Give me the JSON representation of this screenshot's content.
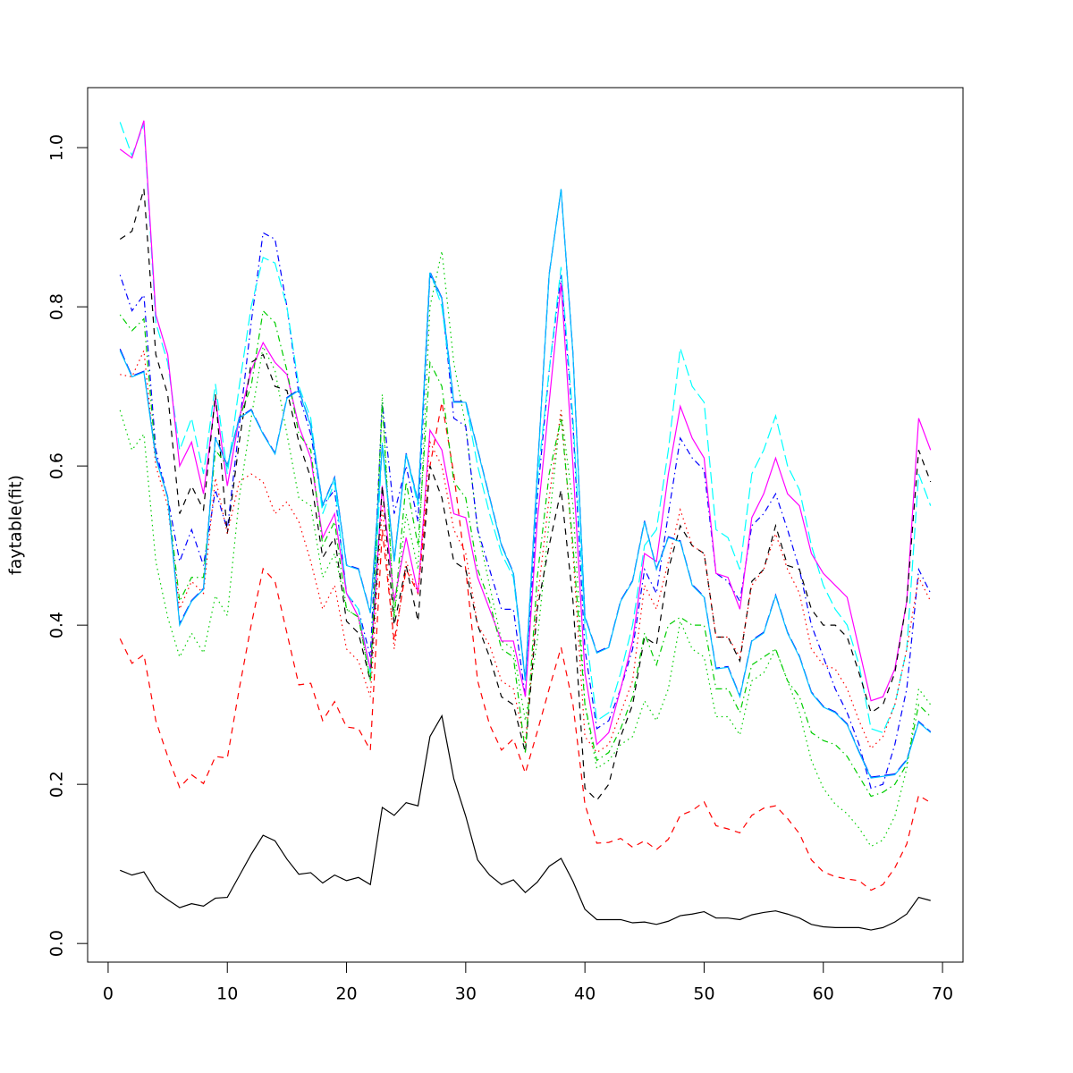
{
  "chart_data": {
    "type": "line",
    "ylabel": "faytable(fit)",
    "xlim": [
      -1.72,
      71.72
    ],
    "ylim": [
      -0.0234,
      1.0754
    ],
    "xticks": [
      0,
      10,
      20,
      30,
      40,
      50,
      60,
      70
    ],
    "yticks": [
      {
        "value": 0,
        "label": "0.0"
      },
      0.2,
      0.4,
      0.6,
      0.8,
      {
        "value": 1,
        "label": "1.0"
      }
    ],
    "x": [
      1,
      2,
      3,
      4,
      5,
      6,
      7,
      8,
      9,
      10,
      11,
      12,
      13,
      14,
      15,
      16,
      17,
      18,
      19,
      20,
      21,
      22,
      23,
      24,
      25,
      26,
      27,
      28,
      29,
      30,
      31,
      32,
      33,
      34,
      35,
      36,
      37,
      38,
      39,
      40,
      41,
      42,
      43,
      44,
      45,
      46,
      47,
      48,
      49,
      50,
      51,
      52,
      53,
      54,
      55,
      56,
      57,
      58,
      59,
      60,
      61,
      62,
      63,
      64,
      65,
      66,
      67,
      68,
      69
    ],
    "series": [
      {
        "color": "#000000",
        "dash": "solid",
        "values": [
          0.092,
          0.086,
          0.09,
          0.066,
          0.055,
          0.045,
          0.05,
          0.047,
          0.057,
          0.058,
          0.085,
          0.112,
          0.136,
          0.129,
          0.106,
          0.087,
          0.089,
          0.076,
          0.086,
          0.079,
          0.083,
          0.074,
          0.171,
          0.161,
          0.177,
          0.173,
          0.26,
          0.286,
          0.207,
          0.16,
          0.105,
          0.086,
          0.074,
          0.08,
          0.064,
          0.077,
          0.097,
          0.107,
          0.078,
          0.043,
          0.03,
          0.03,
          0.03,
          0.026,
          0.027,
          0.024,
          0.028,
          0.035,
          0.037,
          0.04,
          0.032,
          0.032,
          0.03,
          0.036,
          0.039,
          0.041,
          0.037,
          0.032,
          0.024,
          0.021,
          0.02,
          0.02,
          0.02,
          0.017,
          0.02,
          0.027,
          0.037,
          0.058,
          0.054
        ]
      },
      {
        "color": "#ff0000",
        "dash": "dashed",
        "values": [
          0.383,
          0.352,
          0.363,
          0.28,
          0.235,
          0.196,
          0.212,
          0.201,
          0.235,
          0.233,
          0.32,
          0.4,
          0.471,
          0.455,
          0.39,
          0.325,
          0.327,
          0.28,
          0.304,
          0.272,
          0.27,
          0.243,
          0.52,
          0.38,
          0.47,
          0.44,
          0.6,
          0.68,
          0.59,
          0.47,
          0.33,
          0.275,
          0.243,
          0.257,
          0.214,
          0.266,
          0.32,
          0.372,
          0.3,
          0.175,
          0.126,
          0.127,
          0.132,
          0.121,
          0.129,
          0.118,
          0.131,
          0.161,
          0.167,
          0.178,
          0.148,
          0.144,
          0.139,
          0.161,
          0.17,
          0.173,
          0.157,
          0.138,
          0.105,
          0.09,
          0.084,
          0.081,
          0.079,
          0.067,
          0.074,
          0.095,
          0.125,
          0.186,
          0.177
        ]
      },
      {
        "color": "#00cd00",
        "dash": "dotted",
        "values": [
          0.67,
          0.62,
          0.64,
          0.48,
          0.41,
          0.36,
          0.39,
          0.365,
          0.437,
          0.412,
          0.56,
          0.66,
          0.75,
          0.72,
          0.64,
          0.56,
          0.55,
          0.46,
          0.49,
          0.42,
          0.41,
          0.33,
          0.69,
          0.41,
          0.54,
          0.47,
          0.8,
          0.87,
          0.73,
          0.65,
          0.52,
          0.45,
          0.38,
          0.37,
          0.28,
          0.38,
          0.53,
          0.67,
          0.55,
          0.3,
          0.22,
          0.23,
          0.25,
          0.26,
          0.305,
          0.28,
          0.32,
          0.405,
          0.37,
          0.36,
          0.285,
          0.285,
          0.262,
          0.33,
          0.34,
          0.37,
          0.33,
          0.29,
          0.23,
          0.195,
          0.175,
          0.163,
          0.145,
          0.122,
          0.13,
          0.16,
          0.22,
          0.32,
          0.3
        ]
      },
      {
        "color": "#0000ff",
        "dash": "dotdash",
        "values": [
          0.84,
          0.795,
          0.815,
          0.62,
          0.56,
          0.48,
          0.52,
          0.475,
          0.57,
          0.52,
          0.65,
          0.78,
          0.893,
          0.885,
          0.8,
          0.69,
          0.64,
          0.55,
          0.57,
          0.44,
          0.42,
          0.36,
          0.68,
          0.54,
          0.6,
          0.53,
          0.84,
          0.81,
          0.66,
          0.65,
          0.52,
          0.47,
          0.42,
          0.42,
          0.31,
          0.56,
          0.72,
          0.84,
          0.65,
          0.37,
          0.27,
          0.28,
          0.32,
          0.37,
          0.47,
          0.44,
          0.54,
          0.635,
          0.61,
          0.595,
          0.465,
          0.455,
          0.43,
          0.525,
          0.54,
          0.565,
          0.52,
          0.47,
          0.4,
          0.36,
          0.32,
          0.29,
          0.25,
          0.195,
          0.2,
          0.25,
          0.32,
          0.47,
          0.44
        ]
      },
      {
        "color": "#00ffff",
        "dash": "longdash",
        "values": [
          1.032,
          0.99,
          1.03,
          0.78,
          0.73,
          0.62,
          0.66,
          0.59,
          0.703,
          0.59,
          0.7,
          0.8,
          0.862,
          0.855,
          0.8,
          0.7,
          0.66,
          0.54,
          0.58,
          0.44,
          0.42,
          0.34,
          0.63,
          0.48,
          0.615,
          0.55,
          0.845,
          0.8,
          0.68,
          0.68,
          0.6,
          0.54,
          0.49,
          0.46,
          0.33,
          0.58,
          0.72,
          0.85,
          0.66,
          0.4,
          0.28,
          0.29,
          0.34,
          0.4,
          0.5,
          0.52,
          0.62,
          0.748,
          0.7,
          0.68,
          0.52,
          0.51,
          0.47,
          0.59,
          0.62,
          0.663,
          0.6,
          0.57,
          0.5,
          0.45,
          0.42,
          0.4,
          0.35,
          0.27,
          0.265,
          0.3,
          0.37,
          0.59,
          0.55
        ]
      },
      {
        "color": "#ff00ff",
        "dash": "solid",
        "values": [
          0.998,
          0.987,
          1.034,
          0.79,
          0.74,
          0.6,
          0.63,
          0.565,
          0.685,
          0.575,
          0.66,
          0.72,
          0.755,
          0.73,
          0.715,
          0.65,
          0.61,
          0.51,
          0.54,
          0.44,
          0.41,
          0.345,
          0.575,
          0.43,
          0.51,
          0.44,
          0.645,
          0.62,
          0.54,
          0.535,
          0.46,
          0.42,
          0.38,
          0.38,
          0.31,
          0.53,
          0.68,
          0.83,
          0.6,
          0.34,
          0.25,
          0.265,
          0.32,
          0.38,
          0.49,
          0.48,
          0.59,
          0.675,
          0.635,
          0.61,
          0.465,
          0.46,
          0.42,
          0.535,
          0.565,
          0.61,
          0.565,
          0.55,
          0.49,
          0.465,
          0.45,
          0.435,
          0.37,
          0.305,
          0.31,
          0.345,
          0.43,
          0.66,
          0.62
        ]
      },
      {
        "color": "#000000",
        "dash": "dashed",
        "values": [
          0.885,
          0.895,
          0.948,
          0.74,
          0.69,
          0.54,
          0.575,
          0.545,
          0.69,
          0.515,
          0.63,
          0.73,
          0.74,
          0.7,
          0.695,
          0.63,
          0.585,
          0.485,
          0.51,
          0.405,
          0.39,
          0.33,
          0.575,
          0.4,
          0.475,
          0.405,
          0.6,
          0.56,
          0.48,
          0.47,
          0.4,
          0.36,
          0.31,
          0.3,
          0.24,
          0.42,
          0.5,
          0.57,
          0.43,
          0.195,
          0.18,
          0.2,
          0.26,
          0.3,
          0.385,
          0.375,
          0.47,
          0.525,
          0.5,
          0.49,
          0.385,
          0.385,
          0.355,
          0.455,
          0.47,
          0.525,
          0.475,
          0.47,
          0.42,
          0.4,
          0.4,
          0.385,
          0.34,
          0.29,
          0.3,
          0.34,
          0.43,
          0.62,
          0.58
        ]
      },
      {
        "color": "#ff0000",
        "dash": "dotted",
        "values": [
          0.715,
          0.712,
          0.745,
          0.6,
          0.55,
          0.42,
          0.455,
          0.44,
          0.585,
          0.515,
          0.58,
          0.59,
          0.58,
          0.54,
          0.555,
          0.53,
          0.48,
          0.42,
          0.45,
          0.37,
          0.355,
          0.31,
          0.55,
          0.37,
          0.48,
          0.44,
          0.63,
          0.6,
          0.52,
          0.49,
          0.4,
          0.375,
          0.33,
          0.32,
          0.25,
          0.43,
          0.56,
          0.67,
          0.49,
          0.26,
          0.24,
          0.25,
          0.29,
          0.33,
          0.45,
          0.42,
          0.48,
          0.545,
          0.5,
          0.49,
          0.385,
          0.385,
          0.36,
          0.45,
          0.47,
          0.515,
          0.47,
          0.44,
          0.37,
          0.35,
          0.345,
          0.32,
          0.28,
          0.245,
          0.26,
          0.3,
          0.37,
          0.46,
          0.43
        ]
      },
      {
        "color": "#00cd00",
        "dash": "dotdash",
        "values": [
          0.79,
          0.77,
          0.785,
          0.61,
          0.56,
          0.43,
          0.46,
          0.46,
          0.62,
          0.6,
          0.66,
          0.7,
          0.795,
          0.78,
          0.72,
          0.64,
          0.62,
          0.5,
          0.53,
          0.42,
          0.41,
          0.33,
          0.68,
          0.41,
          0.58,
          0.5,
          0.73,
          0.7,
          0.58,
          0.56,
          0.47,
          0.43,
          0.37,
          0.36,
          0.24,
          0.46,
          0.59,
          0.66,
          0.5,
          0.3,
          0.23,
          0.24,
          0.27,
          0.31,
          0.39,
          0.35,
          0.4,
          0.41,
          0.4,
          0.4,
          0.32,
          0.32,
          0.29,
          0.35,
          0.36,
          0.37,
          0.33,
          0.31,
          0.265,
          0.255,
          0.25,
          0.235,
          0.21,
          0.185,
          0.19,
          0.2,
          0.225,
          0.3,
          0.285
        ]
      },
      {
        "color": "#0000ff",
        "dash": "longdash",
        "values": [
          0.747,
          0.713,
          0.719,
          0.612,
          0.561,
          0.402,
          0.431,
          0.446,
          0.636,
          0.601,
          0.661,
          0.671,
          0.641,
          0.616,
          0.686,
          0.696,
          0.651,
          0.551,
          0.586,
          0.476,
          0.471,
          0.416,
          0.626,
          0.481,
          0.616,
          0.556,
          0.844,
          0.811,
          0.681,
          0.681,
          0.621,
          0.561,
          0.501,
          0.466,
          0.331,
          0.591,
          0.841,
          0.947,
          0.741,
          0.411,
          0.366,
          0.373,
          0.431,
          0.456,
          0.531,
          0.471,
          0.511,
          0.506,
          0.451,
          0.436,
          0.346,
          0.348,
          0.311,
          0.381,
          0.391,
          0.438,
          0.391,
          0.361,
          0.316,
          0.298,
          0.291,
          0.276,
          0.241,
          0.209,
          0.211,
          0.213,
          0.231,
          0.279,
          0.266
        ]
      },
      {
        "color": "#00bfff",
        "dash": "solid",
        "values": [
          0.745,
          0.712,
          0.718,
          0.61,
          0.56,
          0.4,
          0.43,
          0.445,
          0.635,
          0.6,
          0.66,
          0.67,
          0.64,
          0.615,
          0.685,
          0.695,
          0.65,
          0.55,
          0.585,
          0.475,
          0.47,
          0.415,
          0.625,
          0.48,
          0.615,
          0.555,
          0.843,
          0.81,
          0.68,
          0.68,
          0.62,
          0.56,
          0.5,
          0.465,
          0.33,
          0.59,
          0.84,
          0.948,
          0.74,
          0.41,
          0.365,
          0.372,
          0.43,
          0.455,
          0.53,
          0.47,
          0.51,
          0.505,
          0.45,
          0.435,
          0.345,
          0.347,
          0.31,
          0.38,
          0.39,
          0.437,
          0.39,
          0.36,
          0.315,
          0.297,
          0.29,
          0.275,
          0.24,
          0.208,
          0.21,
          0.212,
          0.23,
          0.278,
          0.265
        ]
      }
    ]
  }
}
